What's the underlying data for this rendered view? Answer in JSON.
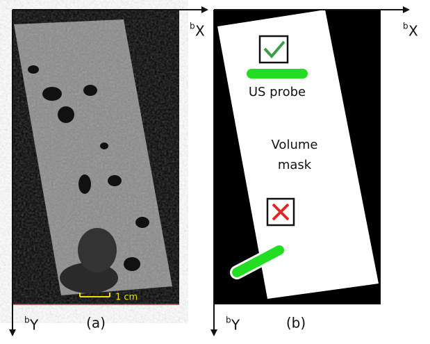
{
  "panels": [
    {
      "label": "(a)",
      "x_axis": {
        "sup": "b",
        "name": "X"
      },
      "y_axis": {
        "sup": "b",
        "name": "Y"
      },
      "scale_bar": "1 cm"
    },
    {
      "label": "(b)",
      "x_axis": {
        "sup": "b",
        "name": "X"
      },
      "y_axis": {
        "sup": "b",
        "name": "Y"
      },
      "probe_label": "US probe",
      "mask_label": [
        "Volume",
        "mask"
      ]
    }
  ]
}
